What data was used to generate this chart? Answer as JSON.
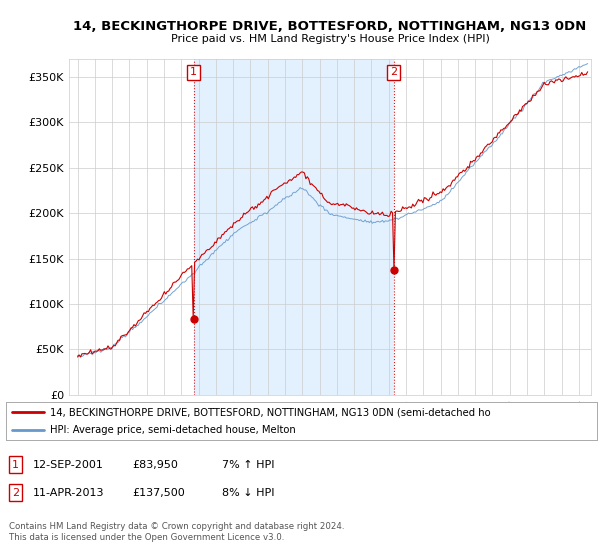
{
  "title": "14, BECKINGTHORPE DRIVE, BOTTESFORD, NOTTINGHAM, NG13 0DN",
  "subtitle": "Price paid vs. HM Land Registry's House Price Index (HPI)",
  "legend_line1": "14, BECKINGTHORPE DRIVE, BOTTESFORD, NOTTINGHAM, NG13 0DN (semi-detached ho",
  "legend_line2": "HPI: Average price, semi-detached house, Melton",
  "transaction1_date": "12-SEP-2001",
  "transaction1_price": "£83,950",
  "transaction1_hpi": "7% ↑ HPI",
  "transaction1_x": 2001.708,
  "transaction1_y": 83950,
  "transaction2_date": "11-APR-2013",
  "transaction2_price": "£137,500",
  "transaction2_hpi": "8% ↓ HPI",
  "transaction2_x": 2013.292,
  "transaction2_y": 137500,
  "footer1": "Contains HM Land Registry data © Crown copyright and database right 2024.",
  "footer2": "This data is licensed under the Open Government Licence v3.0.",
  "price_color": "#cc0000",
  "hpi_color": "#6699cc",
  "hpi_fill_color": "#ddeeff",
  "ylim": [
    0,
    370000
  ],
  "yticks": [
    0,
    50000,
    100000,
    150000,
    200000,
    250000,
    300000,
    350000
  ],
  "ytick_labels": [
    "£0",
    "£50K",
    "£100K",
    "£150K",
    "£200K",
    "£250K",
    "£300K",
    "£350K"
  ],
  "xlim_left": 1994.5,
  "xlim_right": 2024.7
}
